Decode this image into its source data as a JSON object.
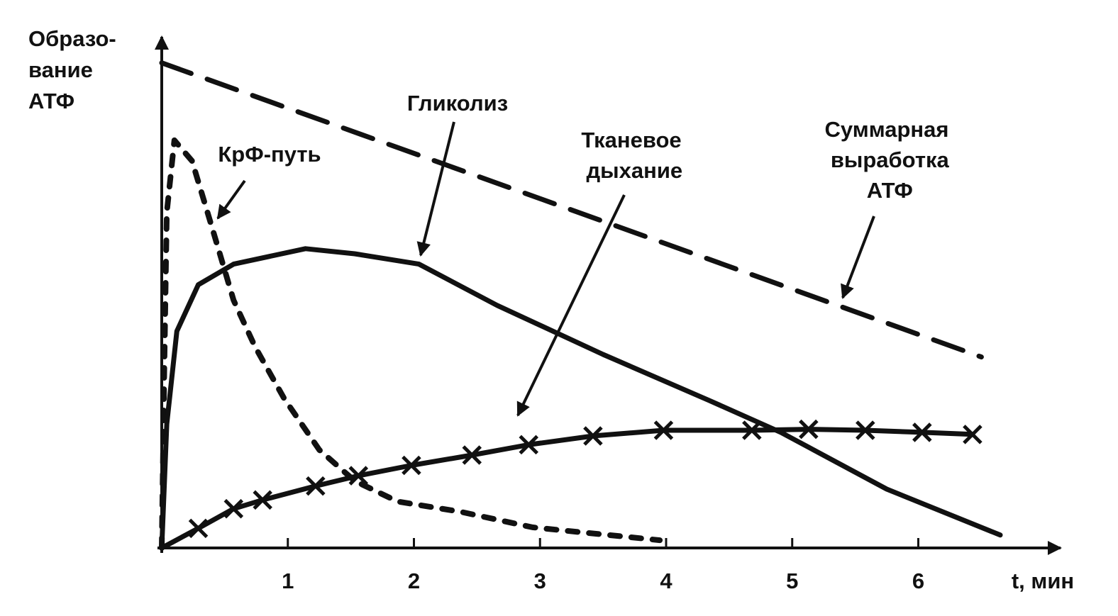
{
  "chart_data": {
    "type": "line",
    "ylabel": [
      "Образо-",
      "вание",
      "АТФ"
    ],
    "xlabel": "t, мин",
    "xlim": [
      0,
      7.1
    ],
    "ylim": [
      0,
      100
    ],
    "xticks": [
      1,
      2,
      3,
      4,
      5,
      6
    ],
    "grid": false,
    "series": [
      {
        "name": "КрФ-путь",
        "color": "#111111",
        "style": "dotted",
        "x": [
          0,
          0.02,
          0.04,
          0.1,
          0.24,
          0.4,
          0.57,
          0.74,
          0.97,
          1.25,
          1.53,
          1.87,
          2.37,
          2.94,
          3.95
        ],
        "values": [
          0,
          35,
          65,
          79,
          75,
          62,
          48,
          39,
          29,
          19,
          13,
          9,
          7,
          4,
          1.5
        ]
      },
      {
        "name": "Гликолиз",
        "color": "#111111",
        "style": "solid",
        "x": [
          0,
          0.04,
          0.12,
          0.29,
          0.57,
          1.14,
          1.53,
          2.04,
          2.66,
          3.5,
          4.34,
          4.91,
          5.75,
          6.65
        ],
        "values": [
          0,
          24,
          42,
          51,
          55,
          58,
          57,
          55,
          47,
          37.5,
          28.6,
          22.4,
          11.4,
          2.5
        ]
      },
      {
        "name": "Тканевое дыхание",
        "color": "#111111",
        "style": "crosses",
        "x": [
          0,
          0.29,
          0.57,
          0.8,
          1.22,
          1.56,
          1.98,
          2.46,
          2.91,
          3.42,
          3.98,
          4.68,
          5.13,
          5.58,
          6.03,
          6.43
        ],
        "values": [
          0,
          3.8,
          7.6,
          9.3,
          12,
          14,
          16,
          18,
          20,
          21.7,
          22.8,
          22.8,
          23,
          22.8,
          22.4,
          22
        ]
      },
      {
        "name": "Суммарная выработка АТФ",
        "color": "#111111",
        "style": "dashed",
        "x": [
          0,
          6.5
        ],
        "values": [
          94,
          37
        ]
      }
    ]
  }
}
